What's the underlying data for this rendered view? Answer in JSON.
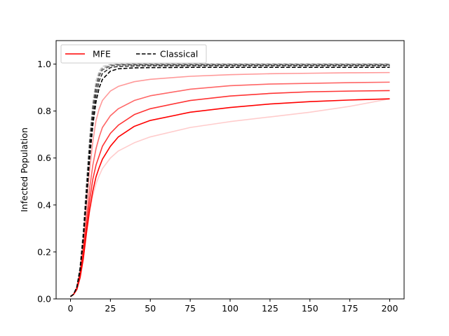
{
  "chart_data": {
    "type": "line",
    "title": "",
    "xlabel": "",
    "ylabel": "Infected Population",
    "xlim": [
      -9,
      209
    ],
    "ylim": [
      0.0,
      1.1
    ],
    "x_ticks": [
      0,
      25,
      50,
      75,
      100,
      125,
      150,
      175,
      200
    ],
    "y_ticks": [
      0.0,
      0.2,
      0.4,
      0.6,
      0.8,
      1.0
    ],
    "x_tick_labels": [
      "0",
      "25",
      "50",
      "75",
      "100",
      "125",
      "150",
      "175",
      "200"
    ],
    "y_tick_labels": [
      "0.0",
      "0.2",
      "0.4",
      "0.6",
      "0.8",
      "1.0"
    ],
    "grid": false,
    "legend": {
      "position": "top-left",
      "entries": [
        {
          "label": "MFE",
          "color": "#ff0000",
          "style": "solid"
        },
        {
          "label": "Classical",
          "color": "#000000",
          "style": "dashed"
        }
      ]
    },
    "x": [
      0,
      2,
      4,
      6,
      8,
      10,
      12,
      14,
      16,
      18,
      20,
      25,
      30,
      40,
      50,
      75,
      100,
      125,
      150,
      175,
      200
    ],
    "series": [
      {
        "group": "MFE",
        "color": "#ff0000",
        "opacity": 1.0,
        "dash": "solid",
        "values": [
          0.01,
          0.02,
          0.04,
          0.09,
          0.17,
          0.28,
          0.38,
          0.46,
          0.52,
          0.56,
          0.595,
          0.65,
          0.69,
          0.735,
          0.76,
          0.795,
          0.815,
          0.83,
          0.84,
          0.847,
          0.852
        ]
      },
      {
        "group": "MFE",
        "color": "#ff0000",
        "opacity": 0.8,
        "dash": "solid",
        "values": [
          0.01,
          0.02,
          0.045,
          0.1,
          0.19,
          0.31,
          0.42,
          0.51,
          0.57,
          0.61,
          0.65,
          0.705,
          0.74,
          0.785,
          0.81,
          0.845,
          0.864,
          0.875,
          0.882,
          0.885,
          0.887
        ]
      },
      {
        "group": "MFE",
        "color": "#ff0000",
        "opacity": 0.6,
        "dash": "solid",
        "values": [
          0.01,
          0.02,
          0.045,
          0.11,
          0.21,
          0.34,
          0.47,
          0.57,
          0.64,
          0.69,
          0.73,
          0.78,
          0.81,
          0.845,
          0.865,
          0.893,
          0.908,
          0.915,
          0.918,
          0.921,
          0.923
        ]
      },
      {
        "group": "MFE",
        "color": "#ff0000",
        "opacity": 0.4,
        "dash": "solid",
        "values": [
          0.01,
          0.02,
          0.05,
          0.12,
          0.24,
          0.4,
          0.55,
          0.67,
          0.76,
          0.81,
          0.845,
          0.885,
          0.905,
          0.925,
          0.935,
          0.948,
          0.955,
          0.959,
          0.961,
          0.963,
          0.964
        ]
      },
      {
        "group": "MFE",
        "color": "#ff0000",
        "opacity": 0.2,
        "dash": "solid",
        "values": [
          0.01,
          0.018,
          0.04,
          0.09,
          0.17,
          0.28,
          0.37,
          0.44,
          0.49,
          0.525,
          0.555,
          0.6,
          0.63,
          0.665,
          0.69,
          0.73,
          0.755,
          0.775,
          0.795,
          0.82,
          0.852
        ]
      },
      {
        "group": "Classical",
        "color": "#000000",
        "opacity": 1.0,
        "dash": "dashed",
        "values": [
          0.01,
          0.02,
          0.05,
          0.12,
          0.25,
          0.42,
          0.6,
          0.74,
          0.84,
          0.9,
          0.935,
          0.97,
          0.98,
          0.984,
          0.985,
          0.986,
          0.986,
          0.986,
          0.986,
          0.986,
          0.986
        ]
      },
      {
        "group": "Classical",
        "color": "#000000",
        "opacity": 0.8,
        "dash": "dashed",
        "values": [
          0.01,
          0.02,
          0.05,
          0.12,
          0.26,
          0.44,
          0.63,
          0.77,
          0.87,
          0.93,
          0.96,
          0.985,
          0.99,
          0.992,
          0.993,
          0.993,
          0.993,
          0.993,
          0.993,
          0.993,
          0.993
        ]
      },
      {
        "group": "Classical",
        "color": "#000000",
        "opacity": 0.6,
        "dash": "dashed",
        "values": [
          0.01,
          0.02,
          0.05,
          0.13,
          0.27,
          0.46,
          0.65,
          0.8,
          0.9,
          0.95,
          0.975,
          0.992,
          0.996,
          0.997,
          0.997,
          0.997,
          0.997,
          0.997,
          0.997,
          0.997,
          0.997
        ]
      },
      {
        "group": "Classical",
        "color": "#000000",
        "opacity": 0.4,
        "dash": "dashed",
        "values": [
          0.01,
          0.02,
          0.05,
          0.13,
          0.28,
          0.48,
          0.67,
          0.82,
          0.91,
          0.96,
          0.982,
          0.996,
          0.999,
          1.0,
          1.0,
          1.0,
          1.0,
          1.0,
          1.0,
          1.0,
          1.0
        ]
      },
      {
        "group": "Classical",
        "color": "#000000",
        "opacity": 0.2,
        "dash": "dashed",
        "values": [
          0.01,
          0.02,
          0.055,
          0.14,
          0.29,
          0.5,
          0.69,
          0.84,
          0.93,
          0.97,
          0.99,
          0.999,
          1.0,
          1.0,
          1.0,
          1.0,
          1.0,
          1.0,
          1.0,
          1.0,
          1.0
        ]
      }
    ]
  }
}
